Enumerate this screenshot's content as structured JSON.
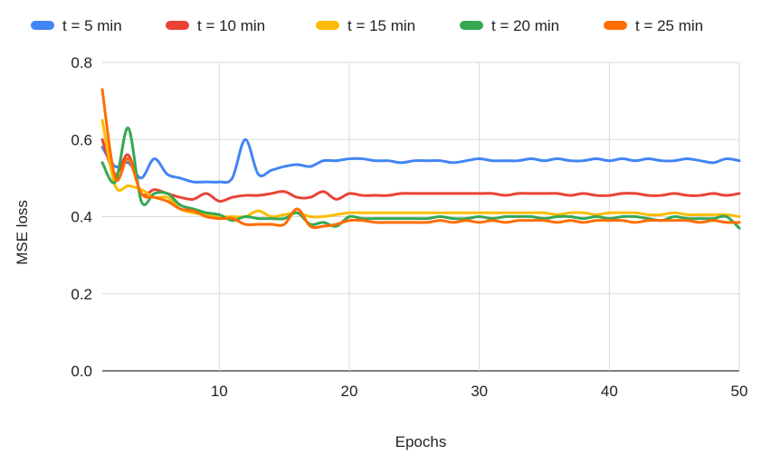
{
  "chart_data": {
    "type": "line",
    "title": "",
    "xlabel": "Epochs",
    "ylabel": "MSE loss",
    "xlim": [
      1,
      50
    ],
    "ylim": [
      0,
      0.8
    ],
    "xticks": [
      10,
      20,
      30,
      40,
      50
    ],
    "yticks": [
      0.0,
      0.2,
      0.4,
      0.6,
      0.8
    ],
    "ytick_labels": [
      "0.0",
      "0.2",
      "0.4",
      "0.6",
      "0.8"
    ],
    "grid": true,
    "legend_position": "top",
    "x": [
      1,
      2,
      3,
      4,
      5,
      6,
      7,
      8,
      9,
      10,
      11,
      12,
      13,
      14,
      15,
      16,
      17,
      18,
      19,
      20,
      21,
      22,
      23,
      24,
      25,
      26,
      27,
      28,
      29,
      30,
      31,
      32,
      33,
      34,
      35,
      36,
      37,
      38,
      39,
      40,
      41,
      42,
      43,
      44,
      45,
      46,
      47,
      48,
      49,
      50
    ],
    "series": [
      {
        "name": "t = 5 min",
        "color": "#4285F4",
        "values": [
          0.58,
          0.53,
          0.54,
          0.5,
          0.55,
          0.51,
          0.5,
          0.49,
          0.49,
          0.49,
          0.5,
          0.6,
          0.51,
          0.52,
          0.53,
          0.535,
          0.53,
          0.545,
          0.545,
          0.55,
          0.55,
          0.545,
          0.545,
          0.54,
          0.545,
          0.545,
          0.545,
          0.54,
          0.545,
          0.55,
          0.545,
          0.545,
          0.545,
          0.55,
          0.545,
          0.55,
          0.545,
          0.545,
          0.55,
          0.545,
          0.55,
          0.545,
          0.55,
          0.545,
          0.545,
          0.55,
          0.545,
          0.54,
          0.55,
          0.545
        ]
      },
      {
        "name": "t = 10 min",
        "color": "#EA4335",
        "values": [
          0.6,
          0.51,
          0.56,
          0.46,
          0.47,
          0.46,
          0.45,
          0.445,
          0.46,
          0.44,
          0.45,
          0.455,
          0.455,
          0.46,
          0.465,
          0.45,
          0.45,
          0.465,
          0.445,
          0.46,
          0.455,
          0.455,
          0.455,
          0.46,
          0.46,
          0.46,
          0.46,
          0.46,
          0.46,
          0.46,
          0.46,
          0.455,
          0.46,
          0.46,
          0.46,
          0.46,
          0.455,
          0.46,
          0.455,
          0.455,
          0.46,
          0.46,
          0.455,
          0.455,
          0.46,
          0.455,
          0.455,
          0.46,
          0.455,
          0.46
        ]
      },
      {
        "name": "t = 15 min",
        "color": "#FBBC04",
        "values": [
          0.65,
          0.48,
          0.48,
          0.47,
          0.45,
          0.45,
          0.42,
          0.41,
          0.405,
          0.4,
          0.4,
          0.4,
          0.415,
          0.4,
          0.405,
          0.41,
          0.4,
          0.4,
          0.405,
          0.41,
          0.41,
          0.41,
          0.41,
          0.41,
          0.41,
          0.41,
          0.41,
          0.41,
          0.41,
          0.41,
          0.41,
          0.41,
          0.41,
          0.41,
          0.41,
          0.405,
          0.41,
          0.41,
          0.405,
          0.41,
          0.41,
          0.41,
          0.405,
          0.405,
          0.41,
          0.405,
          0.405,
          0.405,
          0.405,
          0.4
        ]
      },
      {
        "name": "t = 20 min",
        "color": "#34A853",
        "values": [
          0.54,
          0.49,
          0.63,
          0.44,
          0.46,
          0.46,
          0.43,
          0.42,
          0.41,
          0.405,
          0.39,
          0.4,
          0.395,
          0.395,
          0.395,
          0.41,
          0.38,
          0.385,
          0.375,
          0.4,
          0.395,
          0.395,
          0.395,
          0.395,
          0.395,
          0.395,
          0.4,
          0.395,
          0.395,
          0.4,
          0.395,
          0.4,
          0.4,
          0.4,
          0.395,
          0.4,
          0.4,
          0.395,
          0.4,
          0.395,
          0.4,
          0.4,
          0.395,
          0.39,
          0.4,
          0.395,
          0.395,
          0.395,
          0.4,
          0.37
        ]
      },
      {
        "name": "t = 25 min",
        "color": "#FF6D01",
        "values": [
          0.73,
          0.5,
          0.55,
          0.46,
          0.45,
          0.44,
          0.42,
          0.415,
          0.4,
          0.395,
          0.395,
          0.38,
          0.38,
          0.38,
          0.38,
          0.42,
          0.375,
          0.375,
          0.38,
          0.39,
          0.39,
          0.385,
          0.385,
          0.385,
          0.385,
          0.385,
          0.39,
          0.385,
          0.39,
          0.385,
          0.39,
          0.385,
          0.39,
          0.39,
          0.39,
          0.385,
          0.39,
          0.385,
          0.39,
          0.39,
          0.39,
          0.385,
          0.39,
          0.39,
          0.39,
          0.39,
          0.385,
          0.39,
          0.385,
          0.385
        ]
      }
    ]
  }
}
